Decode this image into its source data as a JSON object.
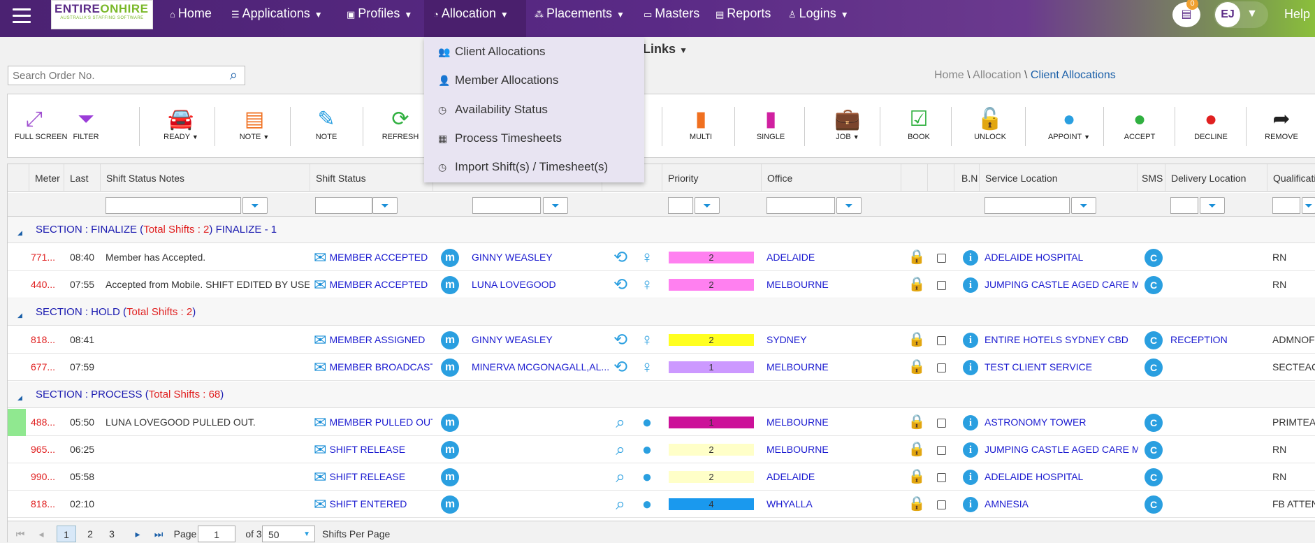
{
  "header": {
    "logo_top_a": "ENTIRE",
    "logo_top_b": "ONHIRE",
    "logo_tagline": "AUSTRALIA'S STAFFING SOFTWARE",
    "nav": {
      "home": "Home",
      "applications": "Applications",
      "profiles": "Profiles",
      "allocation": "Allocation",
      "placements": "Placements",
      "masters": "Masters",
      "reports": "Reports",
      "logins": "Logins"
    },
    "notification_count": "0",
    "user_initials": "EJ",
    "help": "Help"
  },
  "quick_links": "ick Links",
  "search": {
    "placeholder": "Search Order No."
  },
  "breadcrumb": {
    "home": "Home",
    "sep": "\\",
    "level1": "Allocation",
    "current": "Client Allocations"
  },
  "allocation_menu": [
    "Client Allocations",
    "Member Allocations",
    "Availability Status",
    "Process Timesheets",
    "Import Shift(s) / Timesheet(s)"
  ],
  "toolbar": {
    "full_screen": "FULL SCREEN",
    "filter": "FILTER",
    "ready": "READY",
    "note_dd": "NOTE",
    "note": "NOTE",
    "refresh": "REFRESH",
    "multi": "MULTI",
    "single": "SINGLE",
    "job": "JOB",
    "book": "BOOK",
    "unlock": "UNLOCK",
    "appoint": "APPOINT",
    "accept": "ACCEPT",
    "decline": "DECLINE",
    "remove": "REMOVE"
  },
  "columns": {
    "meter": "Meter",
    "last": "Last",
    "notes": "Shift Status Notes",
    "status": "Shift Status",
    "priority": "Priority",
    "office": "Office",
    "bn": "B.N",
    "service_location": "Service Location",
    "sms": "SMS",
    "delivery_location": "Delivery Location",
    "qualification": "Qualificatio"
  },
  "sections": [
    {
      "prefix": "SECTION : FINALIZE (",
      "total": "Total Shifts : 2",
      "suffix": ") FINALIZE - 1"
    },
    {
      "prefix": "SECTION : HOLD (",
      "total": "Total Shifts : 2",
      "suffix": ")"
    },
    {
      "prefix": "SECTION : PROCESS (",
      "total": "Total Shifts : 68",
      "suffix": ")"
    }
  ],
  "rows": [
    {
      "meter": "771...",
      "last": "08:40",
      "notes": "Member has Accepted.",
      "status": "MEMBER ACCEPTED",
      "member": "GINNY WEASLEY",
      "priority": "2",
      "priority_color": "#ff80f0",
      "office": "ADELAIDE",
      "service": "ADELAIDE HOSPITAL",
      "sms": "C",
      "delivery": "",
      "qual": "RN"
    },
    {
      "meter": "440...",
      "last": "07:55",
      "notes": "Accepted from Mobile. SHIFT EDITED BY USER EC",
      "status": "MEMBER ACCEPTED",
      "member": "LUNA LOVEGOOD",
      "priority": "2",
      "priority_color": "#ff80f0",
      "office": "MELBOURNE",
      "service": "JUMPING CASTLE AGED CARE M...",
      "sms": "C",
      "delivery": "",
      "qual": "RN"
    },
    {
      "meter": "818...",
      "last": "08:41",
      "notes": "",
      "status": "MEMBER ASSIGNED",
      "member": "GINNY WEASLEY",
      "priority": "2",
      "priority_color": "#ffff20",
      "office": "SYDNEY",
      "service": "ENTIRE HOTELS SYDNEY CBD",
      "sms": "C",
      "delivery": "RECEPTION",
      "qual": "ADMNOFF"
    },
    {
      "meter": "677...",
      "last": "07:59",
      "notes": "",
      "status": "MEMBER BROADCAST",
      "member": "MINERVA MCGONAGALL,AL...",
      "priority": "1",
      "priority_color": "#cc99ff",
      "office": "MELBOURNE",
      "service": "TEST CLIENT SERVICE",
      "sms": "C",
      "delivery": "",
      "qual": "SECTEACH"
    },
    {
      "meter": "488...",
      "last": "05:50",
      "notes": "LUNA LOVEGOOD PULLED OUT.",
      "status": "MEMBER PULLED OUT",
      "member": "",
      "priority": "1",
      "priority_color": "#cc1199",
      "office": "MELBOURNE",
      "service": "ASTRONOMY TOWER",
      "sms": "C",
      "delivery": "",
      "qual": "PRIMTEAC"
    },
    {
      "meter": "965...",
      "last": "06:25",
      "notes": "",
      "status": "SHIFT RELEASE",
      "member": "",
      "priority": "2",
      "priority_color": "#ffffc8",
      "office": "MELBOURNE",
      "service": "JUMPING CASTLE AGED CARE M...",
      "sms": "C",
      "delivery": "",
      "qual": "RN"
    },
    {
      "meter": "990...",
      "last": "05:58",
      "notes": "",
      "status": "SHIFT RELEASE",
      "member": "",
      "priority": "2",
      "priority_color": "#ffffc8",
      "office": "ADELAIDE",
      "service": "ADELAIDE HOSPITAL",
      "sms": "C",
      "delivery": "",
      "qual": "RN"
    },
    {
      "meter": "818...",
      "last": "02:10",
      "notes": "",
      "status": "SHIFT ENTERED",
      "member": "",
      "priority": "4",
      "priority_color": "#1a99ee",
      "office": "WHYALLA",
      "service": "AMNESIA",
      "sms": "C",
      "delivery": "",
      "qual": "FB ATTEND"
    }
  ],
  "pager": {
    "pages": [
      "1",
      "2",
      "3"
    ],
    "page_label": "Page",
    "page_value": "1",
    "of_label": "of 3",
    "per_page": "50",
    "per_page_label": "Shifts Per Page"
  }
}
